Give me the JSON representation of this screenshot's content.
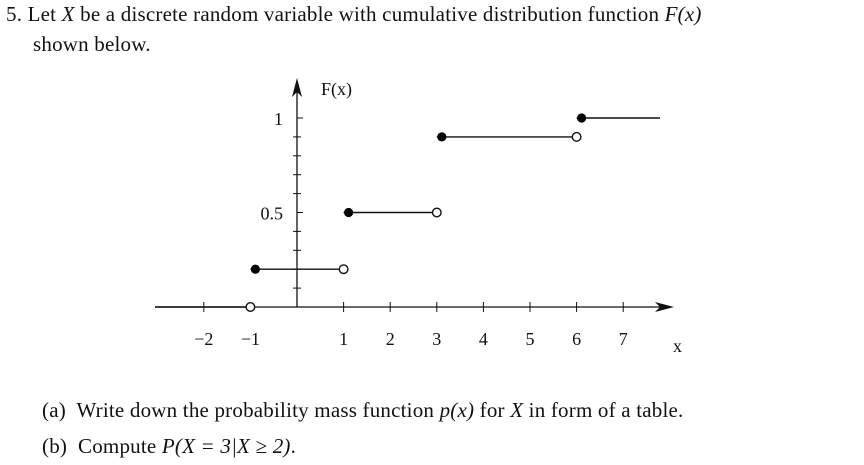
{
  "problem": {
    "number": "5.",
    "intro_1": "Let ",
    "var_X": "X",
    "intro_2": " be a discrete random variable with cumulative distribution function ",
    "Fx": "F(x)",
    "intro_3": "shown below.",
    "part_a_label": "(a)",
    "part_a_1": "Write down the probability mass function ",
    "part_a_px": "p(x)",
    "part_a_2": " for ",
    "part_a_X": "X",
    "part_a_3": " in form of a table.",
    "part_b_label": "(b)",
    "part_b_1": "Compute ",
    "part_b_expr": "P(X = 3|X ≥ 2)",
    "part_b_2": "."
  },
  "chart_data": {
    "type": "line",
    "subtype": "step-cdf",
    "ylabel": "F(x)",
    "xlabel": "x",
    "x_ticks": [
      -2,
      -1,
      1,
      2,
      3,
      4,
      5,
      6,
      7
    ],
    "x_tick_labels": [
      "−2",
      "−1",
      "1",
      "2",
      "3",
      "4",
      "5",
      "6",
      "7"
    ],
    "y_ticks": [
      0.1,
      0.2,
      0.3,
      0.4,
      0.5,
      0.6,
      0.7,
      0.8,
      0.9,
      1.0
    ],
    "y_tick_labels": [
      {
        "value": 0.5,
        "label": "0.5"
      },
      {
        "value": 1,
        "label": "1"
      }
    ],
    "xlim": [
      -3,
      8
    ],
    "ylim": [
      0,
      1
    ],
    "segments": [
      {
        "from": null,
        "to": -1,
        "value": 0,
        "left_closed": false,
        "right_closed": false
      },
      {
        "from": -1,
        "to": 1,
        "value": 0.2,
        "left_closed": true,
        "right_closed": false
      },
      {
        "from": 1,
        "to": 3,
        "value": 0.5,
        "left_closed": true,
        "right_closed": false
      },
      {
        "from": 3,
        "to": 6,
        "value": 0.9,
        "left_closed": true,
        "right_closed": false
      },
      {
        "from": 6,
        "to": null,
        "value": 1.0,
        "left_closed": true,
        "right_closed": false
      }
    ],
    "grid": false
  }
}
